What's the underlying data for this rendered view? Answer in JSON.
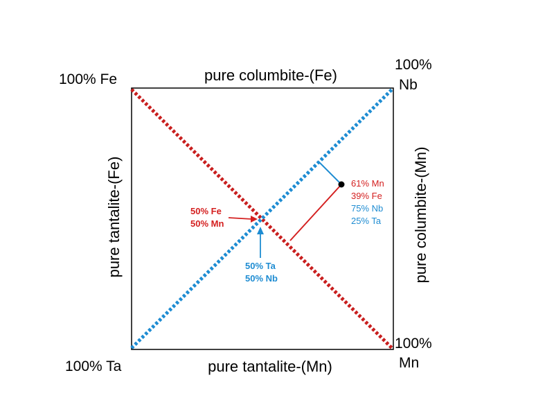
{
  "colors": {
    "fe_mn_line": "#c81e1e",
    "ta_nb_line": "#1e8cd2",
    "frame": "#000000",
    "annotation_red": "#d42020",
    "annotation_blue": "#1e8cd2"
  },
  "edges": {
    "top": "pure columbite-(Fe)",
    "bottom": "pure tantalite-(Mn)",
    "left": "pure tantalite-(Fe)",
    "right": "pure columbite-(Mn)"
  },
  "corners": {
    "top_left": "100% Fe",
    "top_right_pct": "100%",
    "top_right_el": "Nb",
    "bottom_left": "100% Ta",
    "bottom_right_pct": "100%",
    "bottom_right_el": "Mn"
  },
  "annotations": {
    "center_fe": "50% Fe",
    "center_mn": "50% Mn",
    "center_ta": "50% Ta",
    "center_nb": "50% Nb"
  },
  "sample_point": {
    "mn": "61% Mn",
    "fe": "39% Fe",
    "nb": "75% Nb",
    "ta": "25% Ta",
    "mn_fraction": 0.61,
    "nb_fraction": 0.75
  }
}
